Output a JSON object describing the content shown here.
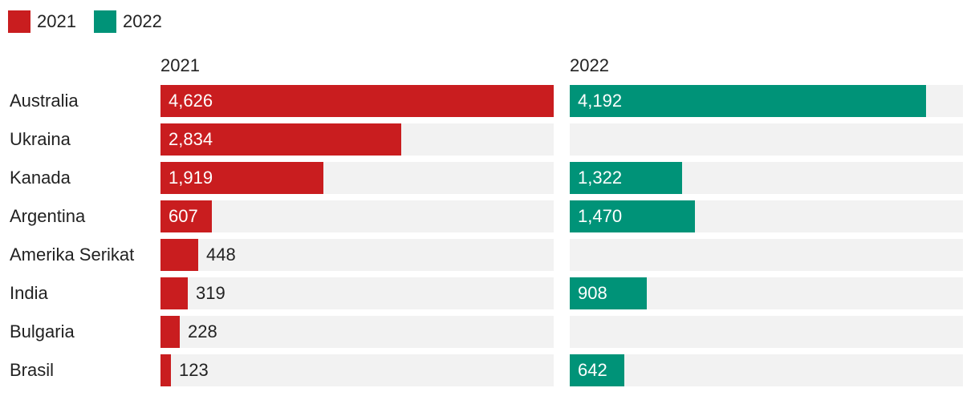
{
  "chart_data": {
    "type": "bar",
    "orientation": "horizontal",
    "legend": {
      "placement": "top-left",
      "items": [
        "2021",
        "2022"
      ]
    },
    "categories": [
      "Australia",
      "Ukraina",
      "Kanada",
      "Argentina",
      "Amerika Serikat",
      "India",
      "Bulgaria",
      "Brasil"
    ],
    "series": [
      {
        "name": "2021",
        "color": "#c91d1f",
        "values": [
          4626,
          2834,
          1919,
          607,
          448,
          319,
          228,
          123
        ],
        "labels": [
          "4,626",
          "2,834",
          "1,919",
          "607",
          "448",
          "319",
          "228",
          "123"
        ]
      },
      {
        "name": "2022",
        "color": "#009378",
        "values": [
          4192,
          null,
          1322,
          1470,
          null,
          908,
          null,
          642
        ],
        "labels": [
          "4,192",
          "",
          "1,322",
          "1,470",
          "",
          "908",
          "",
          "642"
        ]
      }
    ],
    "xlim": [
      0,
      4626
    ],
    "grid": false
  }
}
